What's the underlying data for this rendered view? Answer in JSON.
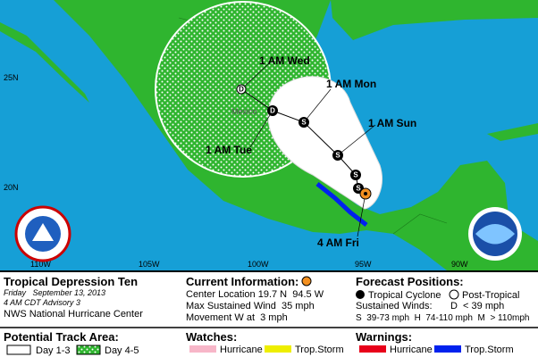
{
  "map": {
    "lat_labels": [
      "25N",
      "20N"
    ],
    "lon_labels": [
      "110W",
      "105W",
      "100W",
      "95W",
      "90W"
    ],
    "place": "Mexico",
    "forecast_labels": [
      "1 AM Wed",
      "1 AM Mon",
      "1 AM Sun",
      "1 AM Tue",
      "4 AM Fri"
    ],
    "points": [
      "D",
      "D",
      "S",
      "S",
      "S",
      "S"
    ]
  },
  "info": {
    "storm": "Tropical Depression Ten",
    "date": "Friday   September 13, 2013",
    "advisory": "4 AM CDT Advisory 3",
    "office": "NWS National Hurricane Center"
  },
  "current": {
    "title": "Current Information:",
    "location": "Center Location 19.7 N  94.5 W",
    "wind": "Max Sustained Wind  35 mph",
    "movement": "Movement W at  3 mph"
  },
  "forecast": {
    "title": "Forecast Positions:",
    "tc": "Tropical Cyclone",
    "pt": "Post-Tropical",
    "winds": "Sustained Winds:",
    "d": "D  < 39 mph",
    "scale": "S  39-73 mph  H  74-110 mph  M  > 110mph"
  },
  "legend": {
    "track": {
      "title": "Potential Track Area:",
      "day13": "Day 1-3",
      "day45": "Day 4-5"
    },
    "watches": {
      "title": "Watches:",
      "hurricane": "Hurricane",
      "storm": "Trop.Storm"
    },
    "warnings": {
      "title": "Warnings:",
      "hurricane": "Hurricane",
      "storm": "Trop.Storm"
    }
  }
}
